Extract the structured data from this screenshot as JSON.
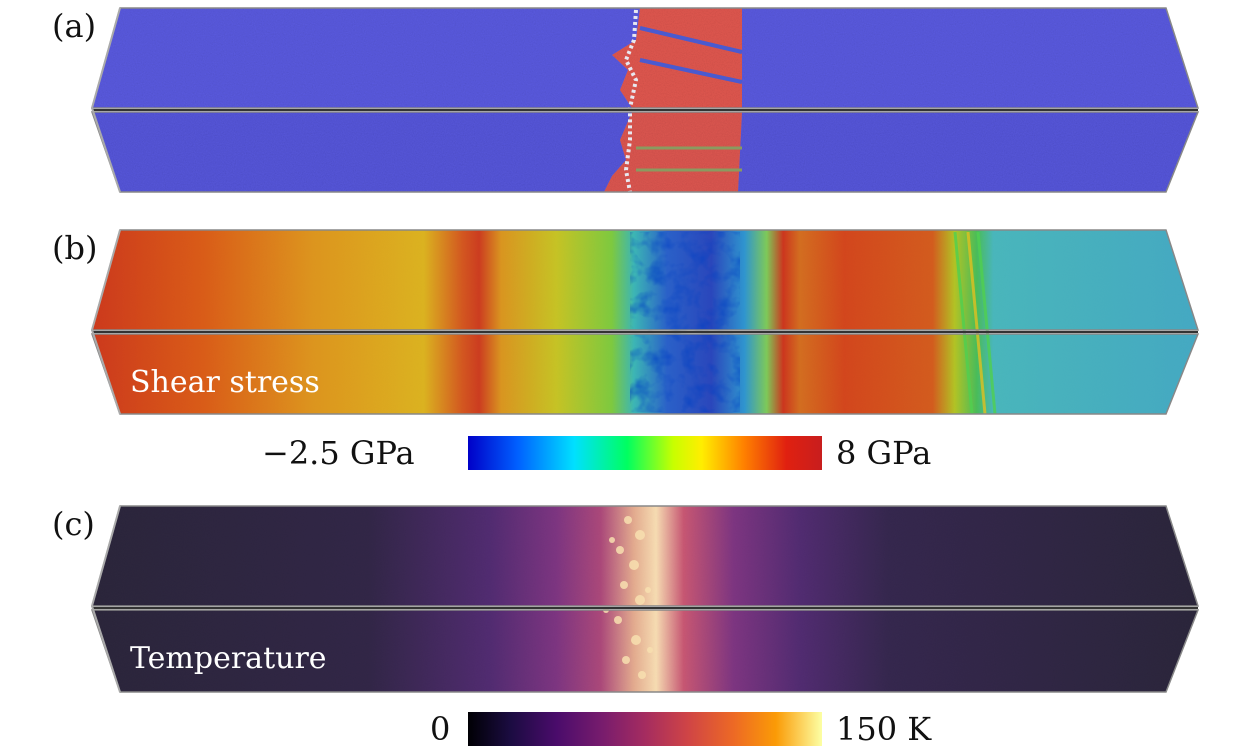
{
  "panels": [
    {
      "label": "(a)"
    },
    {
      "label": "(b)",
      "overlay": "Shear stress"
    },
    {
      "label": "(c)",
      "overlay": "Temperature"
    }
  ],
  "colorbars": {
    "stress": {
      "min_label": "−2.5 GPa",
      "max_label": "8 GPa"
    },
    "temperature": {
      "min_label": "0",
      "max_label": "150 K"
    }
  },
  "colors": {
    "matrix": "#5a5adf",
    "transformed": "#e0574f",
    "stress_map": [
      "#0000c8",
      "#0060ff",
      "#00e0ff",
      "#00ff60",
      "#c8ff00",
      "#ffee00",
      "#ff8000",
      "#e02010",
      "#c81e1e"
    ],
    "temperature_map": [
      "#000004",
      "#1b0c41",
      "#4a0c6b",
      "#781c6d",
      "#a52c60",
      "#cf4446",
      "#ed6925",
      "#fb9b06",
      "#fcffa4"
    ]
  }
}
